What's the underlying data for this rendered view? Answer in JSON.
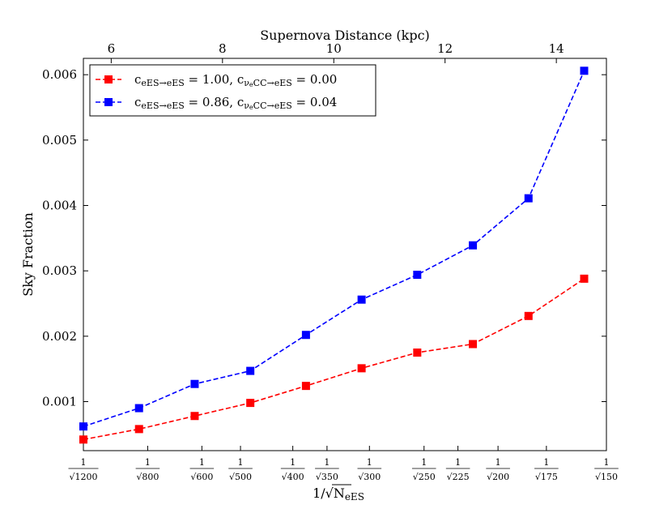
{
  "chart_data": {
    "type": "line",
    "title": "",
    "top_axis": {
      "label": "Supernova Distance (kpc)",
      "ticks": [
        6,
        8,
        10,
        12,
        14
      ],
      "tick_labels": [
        "6",
        "8",
        "10",
        "12",
        "14"
      ],
      "range": [
        5.5,
        14.9
      ]
    },
    "xlabel": "1/√N",
    "xlabel_sub": "eES",
    "ylabel": "Sky Fraction",
    "ylim": [
      0.00025,
      0.00625
    ],
    "yticks": [
      0.001,
      0.002,
      0.003,
      0.004,
      0.005,
      0.006
    ],
    "ytick_labels": [
      "0.001",
      "0.002",
      "0.003",
      "0.004",
      "0.005",
      "0.006"
    ],
    "bottom_ticks": [
      {
        "n": 1200,
        "num": "1",
        "den": "√1200"
      },
      {
        "n": 800,
        "num": "1",
        "den": "√800"
      },
      {
        "n": 600,
        "num": "1",
        "den": "√600"
      },
      {
        "n": 500,
        "num": "1",
        "den": "√500"
      },
      {
        "n": 400,
        "num": "1",
        "den": "√400"
      },
      {
        "n": 350,
        "num": "1",
        "den": "√350"
      },
      {
        "n": 300,
        "num": "1",
        "den": "√300"
      },
      {
        "n": 250,
        "num": "1",
        "den": "√250"
      },
      {
        "n": 225,
        "num": "1",
        "den": "√225"
      },
      {
        "n": 200,
        "num": "1",
        "den": "√200"
      },
      {
        "n": 175,
        "num": "1",
        "den": "√175"
      },
      {
        "n": 150,
        "num": "1",
        "den": "√150"
      }
    ],
    "x_distance_kpc": [
      5.5,
      6.5,
      7.5,
      8.5,
      9.5,
      10.5,
      11.5,
      12.5,
      13.5,
      14.5
    ],
    "series": [
      {
        "name": "c_eES→eES = 1.00, c_νeCC→eES = 0.00",
        "legend_parts": {
          "c1": "1.00",
          "c2": "0.00"
        },
        "color": "#ff0000",
        "values": [
          0.00042,
          0.00058,
          0.00078,
          0.00098,
          0.00124,
          0.00151,
          0.00175,
          0.00188,
          0.00231,
          0.00288
        ]
      },
      {
        "name": "c_eES→eES = 0.86, c_νeCC→eES = 0.04",
        "legend_parts": {
          "c1": "0.86",
          "c2": "0.04"
        },
        "color": "#0000ff",
        "values": [
          0.00062,
          0.0009,
          0.00127,
          0.00147,
          0.00202,
          0.00256,
          0.00294,
          0.00339,
          0.00411,
          0.00606
        ]
      }
    ],
    "legend_position": "top-left"
  }
}
